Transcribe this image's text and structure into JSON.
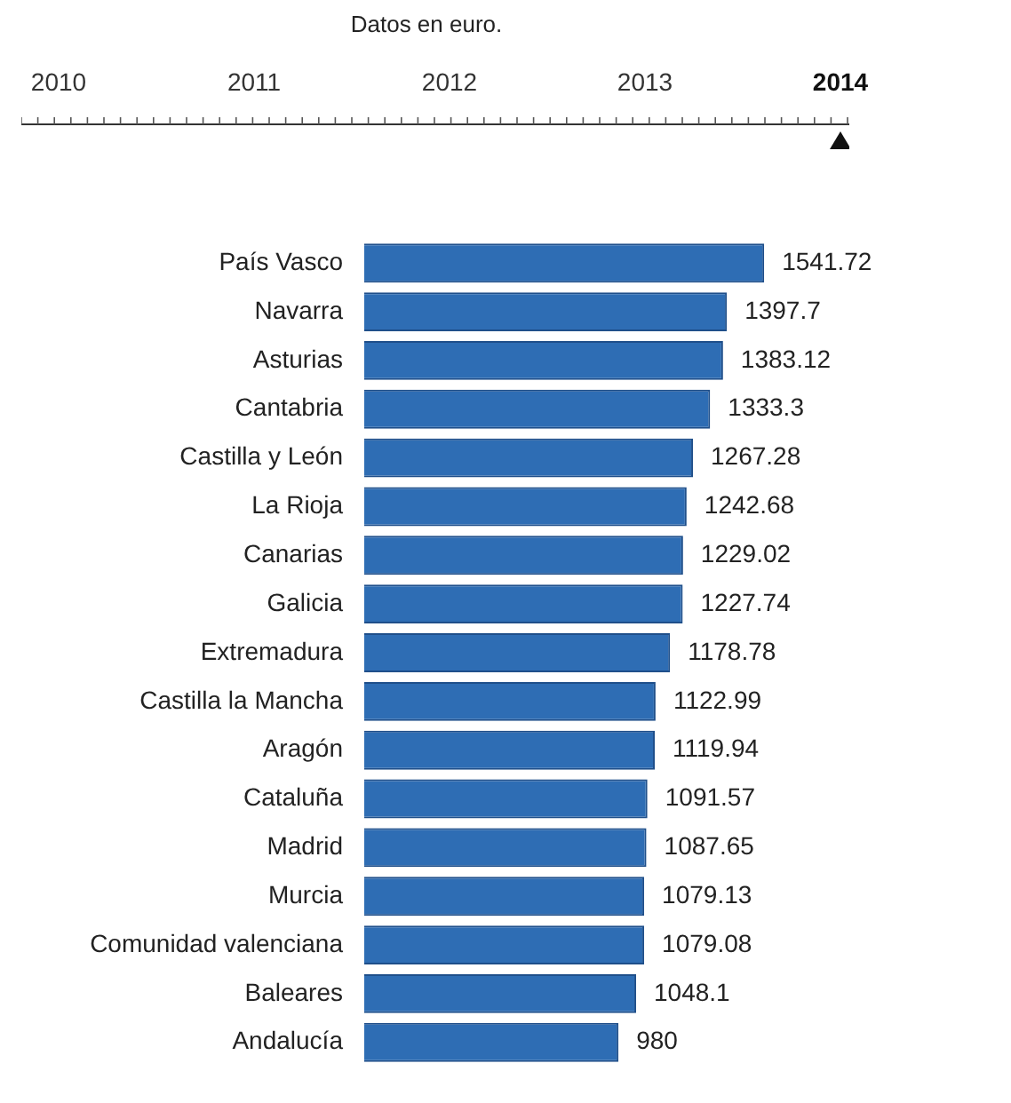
{
  "chart_data": {
    "type": "bar",
    "orientation": "horizontal",
    "title": "Datos en euro.",
    "annotations": [
      "2010",
      "2011",
      "2012",
      "2013",
      "2014"
    ],
    "categories": [
      "País Vasco",
      "Navarra",
      "Asturias",
      "Cantabria",
      "Castilla y León",
      "La Rioja",
      "Canarias",
      "Galicia",
      "Extremadura",
      "Castilla la Mancha",
      "Aragón",
      "Cataluña",
      "Madrid",
      "Murcia",
      "Comunidad valenciana",
      "Baleares",
      "Andalucía"
    ],
    "values": [
      1541.72,
      1397.7,
      1383.12,
      1333.3,
      1267.28,
      1242.68,
      1229.02,
      1227.74,
      1178.78,
      1122.99,
      1119.94,
      1091.57,
      1087.65,
      1079.13,
      1079.08,
      1048.1,
      980
    ],
    "color": "#2e6db4",
    "data_labels": true,
    "legend": false
  }
}
